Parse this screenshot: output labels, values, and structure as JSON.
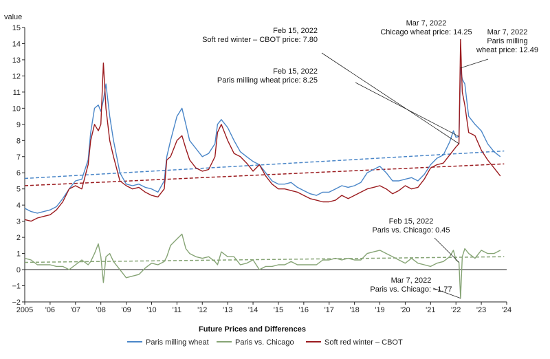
{
  "chart_data": {
    "type": "line",
    "ylabel": "value",
    "xlim": [
      2005.0,
      2024.0
    ],
    "ylim": [
      -2,
      15
    ],
    "yticks": [
      -2,
      -1,
      0,
      1,
      2,
      3,
      4,
      5,
      6,
      7,
      8,
      9,
      10,
      11,
      12,
      13,
      14,
      15
    ],
    "xticks": [
      {
        "value": 2005,
        "label": "2005"
      },
      {
        "value": 2006,
        "label": "'06"
      },
      {
        "value": 2007,
        "label": "'07"
      },
      {
        "value": 2008,
        "label": "'08"
      },
      {
        "value": 2009,
        "label": "'09"
      },
      {
        "value": 2010,
        "label": "'10"
      },
      {
        "value": 2011,
        "label": "'11"
      },
      {
        "value": 2012,
        "label": "'12"
      },
      {
        "value": 2013,
        "label": "'13"
      },
      {
        "value": 2014,
        "label": "'14"
      },
      {
        "value": 2015,
        "label": "'15"
      },
      {
        "value": 2016,
        "label": "'16"
      },
      {
        "value": 2017,
        "label": "'17"
      },
      {
        "value": 2018,
        "label": "'18"
      },
      {
        "value": 2019,
        "label": "'19"
      },
      {
        "value": 2020,
        "label": "'20"
      },
      {
        "value": 2021,
        "label": "'21"
      },
      {
        "value": 2022,
        "label": "'22"
      },
      {
        "value": 2023,
        "label": "'23"
      },
      {
        "value": 2024,
        "label": "'24"
      }
    ],
    "grid": false,
    "legend": {
      "title": "Future Prices and Differences",
      "position": "bottom"
    },
    "series": [
      {
        "name": "Paris milling wheat",
        "color": "#4a86c8",
        "x": [
          2005.0,
          2005.25,
          2005.5,
          2005.75,
          2006.0,
          2006.25,
          2006.5,
          2006.75,
          2007.0,
          2007.25,
          2007.5,
          2007.6,
          2007.75,
          2007.9,
          2008.0,
          2008.1,
          2008.2,
          2008.35,
          2008.5,
          2008.75,
          2009.0,
          2009.25,
          2009.5,
          2009.75,
          2010.0,
          2010.25,
          2010.5,
          2010.6,
          2010.75,
          2011.0,
          2011.2,
          2011.35,
          2011.5,
          2011.75,
          2012.0,
          2012.25,
          2012.5,
          2012.6,
          2012.75,
          2013.0,
          2013.25,
          2013.5,
          2013.75,
          2014.0,
          2014.25,
          2014.5,
          2014.75,
          2015.0,
          2015.25,
          2015.5,
          2015.75,
          2016.0,
          2016.25,
          2016.5,
          2016.75,
          2017.0,
          2017.25,
          2017.5,
          2017.75,
          2018.0,
          2018.25,
          2018.5,
          2018.75,
          2019.0,
          2019.25,
          2019.5,
          2019.75,
          2020.0,
          2020.25,
          2020.5,
          2020.75,
          2021.0,
          2021.25,
          2021.5,
          2021.75,
          2021.9,
          2022.0,
          2022.12,
          2022.18,
          2022.25,
          2022.35,
          2022.5,
          2022.75,
          2023.0,
          2023.25,
          2023.5,
          2023.75
        ],
        "values": [
          3.8,
          3.6,
          3.5,
          3.6,
          3.7,
          3.9,
          4.4,
          5.0,
          5.5,
          5.6,
          6.8,
          8.5,
          10.0,
          10.2,
          9.8,
          10.5,
          11.5,
          9.5,
          8.0,
          6.0,
          5.3,
          5.2,
          5.3,
          5.1,
          5.0,
          4.8,
          5.5,
          7.0,
          8.0,
          9.5,
          10.0,
          9.0,
          8.0,
          7.5,
          7.0,
          7.2,
          7.8,
          9.0,
          9.3,
          8.8,
          8.0,
          7.3,
          7.0,
          6.7,
          6.5,
          6.0,
          5.5,
          5.3,
          5.3,
          5.4,
          5.1,
          4.9,
          4.7,
          4.6,
          4.8,
          4.8,
          5.0,
          5.2,
          5.1,
          5.2,
          5.4,
          6.0,
          6.2,
          6.4,
          6.0,
          5.5,
          5.5,
          5.6,
          5.7,
          5.5,
          5.9,
          6.5,
          6.9,
          7.1,
          7.9,
          8.6,
          8.2,
          8.25,
          12.49,
          11.8,
          11.5,
          9.5,
          9.0,
          8.6,
          7.8,
          7.3,
          7.0
        ]
      },
      {
        "name": "Soft red winter – CBOT",
        "color": "#9b1b1f",
        "x": [
          2005.0,
          2005.25,
          2005.5,
          2005.75,
          2006.0,
          2006.25,
          2006.5,
          2006.75,
          2007.0,
          2007.25,
          2007.5,
          2007.6,
          2007.75,
          2007.9,
          2008.0,
          2008.1,
          2008.2,
          2008.35,
          2008.5,
          2008.75,
          2009.0,
          2009.25,
          2009.5,
          2009.75,
          2010.0,
          2010.25,
          2010.5,
          2010.6,
          2010.75,
          2011.0,
          2011.2,
          2011.35,
          2011.5,
          2011.75,
          2012.0,
          2012.25,
          2012.5,
          2012.6,
          2012.75,
          2013.0,
          2013.25,
          2013.5,
          2013.75,
          2014.0,
          2014.25,
          2014.5,
          2014.75,
          2015.0,
          2015.25,
          2015.5,
          2015.75,
          2016.0,
          2016.25,
          2016.5,
          2016.75,
          2017.0,
          2017.25,
          2017.5,
          2017.75,
          2018.0,
          2018.25,
          2018.5,
          2018.75,
          2019.0,
          2019.25,
          2019.5,
          2019.75,
          2020.0,
          2020.25,
          2020.5,
          2020.75,
          2021.0,
          2021.25,
          2021.5,
          2021.75,
          2021.9,
          2022.0,
          2022.12,
          2022.18,
          2022.25,
          2022.35,
          2022.5,
          2022.75,
          2023.0,
          2023.25,
          2023.5,
          2023.75
        ],
        "values": [
          3.1,
          3.0,
          3.2,
          3.3,
          3.4,
          3.7,
          4.2,
          5.0,
          5.2,
          5.0,
          6.5,
          8.0,
          9.0,
          8.6,
          9.0,
          12.8,
          10.0,
          8.0,
          7.0,
          5.5,
          5.2,
          5.0,
          5.1,
          4.8,
          4.6,
          4.5,
          5.0,
          6.8,
          7.0,
          8.0,
          8.3,
          7.5,
          6.8,
          6.3,
          6.1,
          6.2,
          7.0,
          8.5,
          9.0,
          8.0,
          7.2,
          7.0,
          6.6,
          6.1,
          6.5,
          5.8,
          5.3,
          5.0,
          5.0,
          4.9,
          4.8,
          4.6,
          4.4,
          4.3,
          4.2,
          4.2,
          4.3,
          4.6,
          4.4,
          4.6,
          4.8,
          5.0,
          5.1,
          5.2,
          5.0,
          4.7,
          4.9,
          5.2,
          5.0,
          5.1,
          5.6,
          6.3,
          6.5,
          6.6,
          7.1,
          7.4,
          7.6,
          7.8,
          14.25,
          11.0,
          10.2,
          8.5,
          8.3,
          7.4,
          6.8,
          6.3,
          5.8
        ]
      },
      {
        "name": "Paris vs. Chicago",
        "color": "#86a475",
        "x": [
          2005.0,
          2005.25,
          2005.5,
          2005.75,
          2006.0,
          2006.25,
          2006.5,
          2006.75,
          2007.0,
          2007.25,
          2007.5,
          2007.6,
          2007.75,
          2007.9,
          2008.0,
          2008.1,
          2008.2,
          2008.35,
          2008.5,
          2008.75,
          2009.0,
          2009.25,
          2009.5,
          2009.75,
          2010.0,
          2010.25,
          2010.5,
          2010.6,
          2010.75,
          2011.0,
          2011.2,
          2011.35,
          2011.5,
          2011.75,
          2012.0,
          2012.25,
          2012.5,
          2012.6,
          2012.75,
          2013.0,
          2013.25,
          2013.5,
          2013.75,
          2014.0,
          2014.25,
          2014.5,
          2014.75,
          2015.0,
          2015.25,
          2015.5,
          2015.75,
          2016.0,
          2016.25,
          2016.5,
          2016.75,
          2017.0,
          2017.25,
          2017.5,
          2017.75,
          2018.0,
          2018.25,
          2018.5,
          2018.75,
          2019.0,
          2019.25,
          2019.5,
          2019.75,
          2020.0,
          2020.25,
          2020.5,
          2020.75,
          2021.0,
          2021.25,
          2021.5,
          2021.75,
          2021.9,
          2022.0,
          2022.12,
          2022.18,
          2022.25,
          2022.35,
          2022.5,
          2022.75,
          2023.0,
          2023.25,
          2023.5,
          2023.75
        ],
        "values": [
          0.7,
          0.6,
          0.3,
          0.3,
          0.3,
          0.2,
          0.2,
          0.0,
          0.3,
          0.6,
          0.3,
          0.5,
          1.0,
          1.6,
          0.8,
          -0.8,
          0.8,
          1.0,
          0.5,
          0.0,
          -0.5,
          -0.4,
          -0.3,
          0.1,
          0.4,
          0.3,
          0.5,
          0.8,
          1.5,
          1.9,
          2.2,
          1.3,
          1.0,
          0.8,
          0.7,
          0.8,
          0.5,
          0.3,
          1.1,
          0.8,
          0.8,
          0.3,
          0.4,
          0.6,
          0.0,
          0.2,
          0.2,
          0.3,
          0.3,
          0.5,
          0.3,
          0.3,
          0.3,
          0.3,
          0.6,
          0.6,
          0.7,
          0.6,
          0.7,
          0.6,
          0.6,
          1.0,
          1.1,
          1.2,
          1.0,
          0.8,
          0.6,
          0.4,
          0.7,
          0.4,
          0.3,
          0.2,
          0.4,
          0.5,
          0.8,
          1.2,
          0.6,
          0.45,
          -1.77,
          0.8,
          1.3,
          1.0,
          0.7,
          1.2,
          1.0,
          1.0,
          1.2
        ]
      }
    ],
    "trendlines": [
      {
        "series": "Paris milling wheat",
        "color": "#4a86c8",
        "x": [
          2005.0,
          2023.9
        ],
        "values": [
          5.65,
          7.35
        ]
      },
      {
        "series": "Soft red winter – CBOT",
        "color": "#9b1b1f",
        "x": [
          2005.0,
          2023.9
        ],
        "values": [
          5.2,
          6.55
        ]
      },
      {
        "series": "Paris vs. Chicago",
        "color": "#86a475",
        "x": [
          2005.0,
          2023.9
        ],
        "values": [
          0.45,
          0.8
        ]
      }
    ],
    "annotations": [
      {
        "lines": [
          "Feb 15, 2022",
          "Soft red winter – CBOT price: 7.80"
        ],
        "point": {
          "x": 2022.12,
          "y": 7.8
        }
      },
      {
        "lines": [
          "Mar 7, 2022",
          "Chicago wheat price: 14.25"
        ],
        "point": {
          "x": 2022.18,
          "y": 14.25
        }
      },
      {
        "lines": [
          "Mar 7, 2022",
          "Paris milling",
          "wheat price: 12.49"
        ],
        "point": {
          "x": 2022.18,
          "y": 12.49
        }
      },
      {
        "lines": [
          "Feb 15, 2022",
          "Paris milling wheat price: 8.25"
        ],
        "point": {
          "x": 2022.12,
          "y": 8.25
        }
      },
      {
        "lines": [
          "Feb 15, 2022",
          "Paris vs. Chicago: 0.45"
        ],
        "point": {
          "x": 2022.12,
          "y": 0.45
        }
      },
      {
        "lines": [
          "Mar 7, 2022",
          "Paris vs. Chicago: –1.77"
        ],
        "point": {
          "x": 2022.18,
          "y": -1.77
        }
      }
    ]
  }
}
